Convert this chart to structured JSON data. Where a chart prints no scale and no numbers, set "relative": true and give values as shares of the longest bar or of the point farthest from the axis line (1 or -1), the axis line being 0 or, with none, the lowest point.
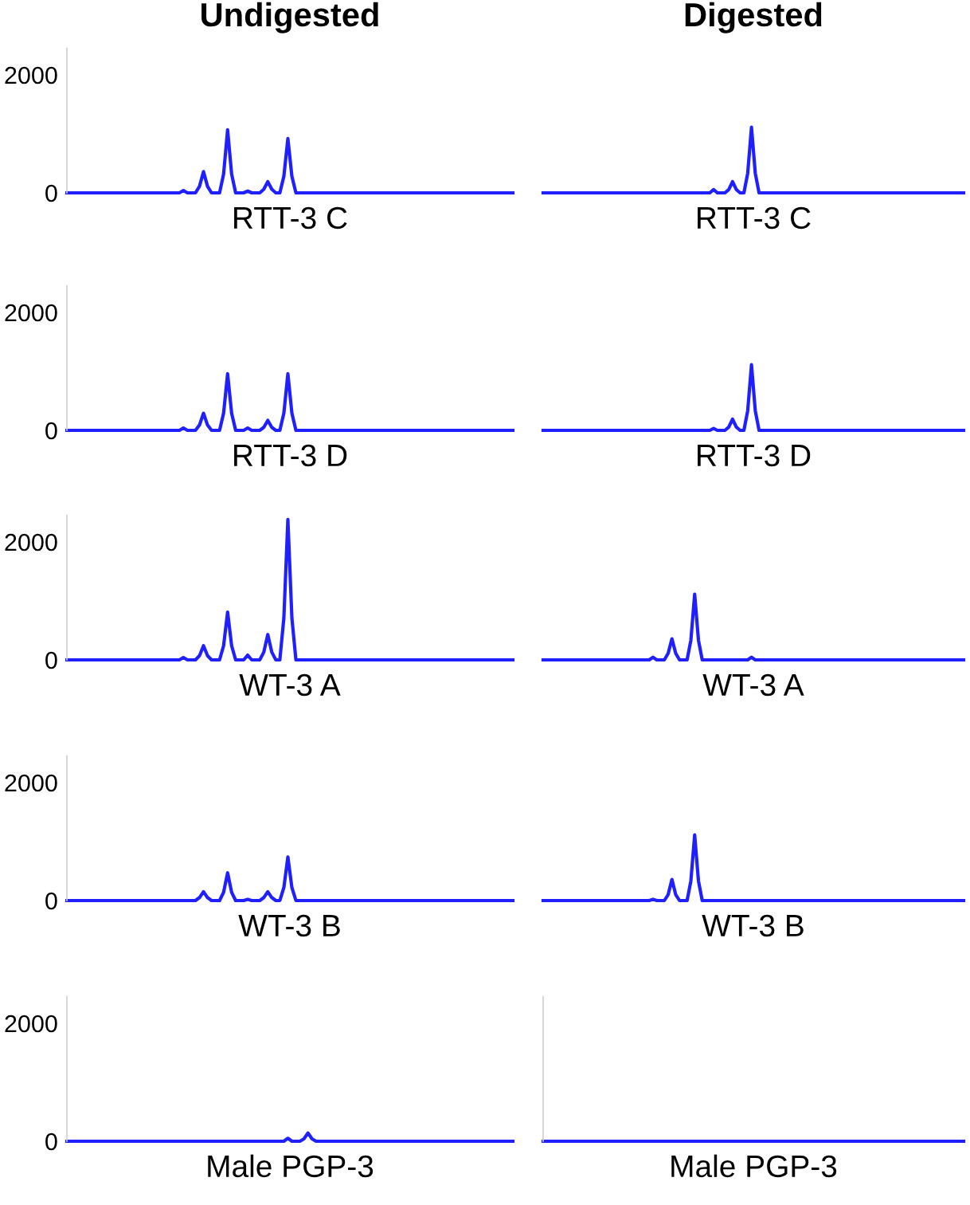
{
  "chart_data": [
    {
      "type": "line",
      "title": "Undigested",
      "xlabel": "RTT-3 C",
      "tick_labels": "y",
      "ylim": [
        0,
        2450
      ],
      "yticks": [
        0,
        2000
      ],
      "categories": [
        null,
        null,
        null,
        null,
        null,
        null,
        null,
        null,
        null,
        null,
        null,
        null,
        null,
        null,
        null,
        null,
        null,
        null,
        null,
        null,
        null,
        null,
        null,
        null,
        null,
        null,
        null,
        null,
        null,
        null,
        null,
        null,
        null,
        null,
        null,
        null,
        null,
        null,
        null,
        null,
        null,
        null,
        null,
        null,
        null,
        null,
        null,
        null,
        null,
        null,
        null,
        null,
        null,
        null,
        null,
        null,
        null,
        null,
        null,
        null,
        null,
        null,
        null,
        null,
        null,
        null,
        null,
        null,
        null,
        null,
        null,
        null,
        null,
        null,
        null,
        null,
        null,
        null,
        null,
        null,
        null,
        null,
        null,
        null,
        null,
        null,
        null,
        null,
        null,
        null,
        null,
        null,
        null,
        null,
        null,
        null,
        null,
        null,
        null,
        null,
        null,
        null,
        null,
        null,
        null,
        null,
        null,
        null,
        null,
        null,
        null,
        null
      ],
      "series": [
        {
          "color": "#2020ff",
          "values": [
            0,
            0,
            0,
            0,
            0,
            0,
            0,
            0,
            0,
            0,
            0,
            0,
            0,
            0,
            0,
            0,
            0,
            0,
            0,
            0,
            0,
            0,
            0,
            0,
            0,
            0,
            0,
            0,
            0,
            40,
            0,
            0,
            0,
            110,
            360,
            110,
            0,
            0,
            0,
            320,
            1070,
            320,
            0,
            0,
            0,
            30,
            0,
            0,
            0,
            60,
            190,
            60,
            0,
            0,
            280,
            920,
            280,
            0,
            0,
            0,
            0,
            0,
            0,
            0,
            0,
            0,
            0,
            0,
            0,
            0,
            0,
            0,
            0,
            0,
            0,
            0,
            0,
            0,
            0,
            0,
            0,
            0,
            0,
            0,
            0,
            0,
            0,
            0,
            0,
            0,
            0,
            0,
            0,
            0,
            0,
            0,
            0,
            0,
            0,
            0,
            0,
            0,
            0,
            0,
            0,
            0,
            0,
            0,
            0,
            0,
            0,
            0
          ]
        }
      ]
    },
    {
      "type": "line",
      "title": "Digested",
      "xlabel": "RTT-3 C",
      "tick_labels": false,
      "relative": true,
      "categories": [
        null,
        null,
        null,
        null,
        null,
        null,
        null,
        null,
        null,
        null,
        null,
        null,
        null,
        null,
        null,
        null,
        null,
        null,
        null,
        null,
        null,
        null,
        null,
        null,
        null,
        null,
        null,
        null,
        null,
        null,
        null,
        null,
        null,
        null,
        null,
        null,
        null,
        null,
        null,
        null,
        null,
        null,
        null,
        null,
        null,
        null,
        null,
        null,
        null,
        null,
        null,
        null,
        null,
        null,
        null,
        null,
        null,
        null,
        null,
        null,
        null,
        null,
        null,
        null,
        null,
        null,
        null,
        null,
        null,
        null,
        null,
        null,
        null,
        null,
        null,
        null,
        null,
        null,
        null,
        null,
        null,
        null,
        null,
        null,
        null,
        null,
        null,
        null,
        null,
        null,
        null,
        null,
        null,
        null,
        null,
        null,
        null,
        null,
        null,
        null,
        null,
        null,
        null,
        null,
        null,
        null,
        null,
        null,
        null,
        null,
        null,
        null
      ],
      "series": [
        {
          "color": "#2020ff",
          "values": [
            0,
            0,
            0,
            0,
            0,
            0,
            0,
            0,
            0,
            0,
            0,
            0,
            0,
            0,
            0,
            0,
            0,
            0,
            0,
            0,
            0,
            0,
            0,
            0,
            0,
            0,
            0,
            0,
            0,
            0,
            0,
            0,
            0,
            0,
            0,
            0,
            0,
            0,
            0,
            0,
            0,
            0,
            0,
            0,
            0,
            0.05,
            0,
            0,
            0,
            0.05,
            0.17,
            0.05,
            0,
            0,
            0.3,
            1,
            0.3,
            0,
            0,
            0,
            0,
            0,
            0,
            0,
            0,
            0,
            0,
            0,
            0,
            0,
            0,
            0,
            0,
            0,
            0,
            0,
            0,
            0,
            0,
            0,
            0,
            0,
            0,
            0,
            0,
            0,
            0,
            0,
            0,
            0,
            0,
            0,
            0,
            0,
            0,
            0,
            0,
            0,
            0,
            0,
            0,
            0,
            0,
            0,
            0,
            0,
            0,
            0,
            0,
            0,
            0,
            0
          ]
        }
      ]
    },
    {
      "type": "line",
      "xlabel": "RTT-3 D",
      "tick_labels": "y",
      "ylim": [
        0,
        2450
      ],
      "yticks": [
        0,
        2000
      ],
      "categories": [
        null,
        null,
        null,
        null,
        null,
        null,
        null,
        null,
        null,
        null,
        null,
        null,
        null,
        null,
        null,
        null,
        null,
        null,
        null,
        null,
        null,
        null,
        null,
        null,
        null,
        null,
        null,
        null,
        null,
        null,
        null,
        null,
        null,
        null,
        null,
        null,
        null,
        null,
        null,
        null,
        null,
        null,
        null,
        null,
        null,
        null,
        null,
        null,
        null,
        null,
        null,
        null,
        null,
        null,
        null,
        null,
        null,
        null,
        null,
        null,
        null,
        null,
        null,
        null,
        null,
        null,
        null,
        null,
        null,
        null,
        null,
        null,
        null,
        null,
        null,
        null,
        null,
        null,
        null,
        null,
        null,
        null,
        null,
        null,
        null,
        null,
        null,
        null,
        null,
        null,
        null,
        null,
        null,
        null,
        null,
        null,
        null,
        null,
        null,
        null,
        null,
        null,
        null,
        null,
        null,
        null,
        null,
        null,
        null,
        null,
        null,
        null
      ],
      "series": [
        {
          "color": "#2020ff",
          "values": [
            0,
            0,
            0,
            0,
            0,
            0,
            0,
            0,
            0,
            0,
            0,
            0,
            0,
            0,
            0,
            0,
            0,
            0,
            0,
            0,
            0,
            0,
            0,
            0,
            0,
            0,
            0,
            0,
            0,
            40,
            0,
            0,
            0,
            90,
            290,
            90,
            0,
            0,
            0,
            290,
            960,
            290,
            0,
            0,
            0,
            40,
            0,
            0,
            0,
            50,
            170,
            50,
            0,
            0,
            290,
            960,
            290,
            0,
            0,
            0,
            0,
            0,
            0,
            0,
            0,
            0,
            0,
            0,
            0,
            0,
            0,
            0,
            0,
            0,
            0,
            0,
            0,
            0,
            0,
            0,
            0,
            0,
            0,
            0,
            0,
            0,
            0,
            0,
            0,
            0,
            0,
            0,
            0,
            0,
            0,
            0,
            0,
            0,
            0,
            0,
            0,
            0,
            0,
            0,
            0,
            0,
            0,
            0,
            0,
            0,
            0,
            0
          ]
        }
      ]
    },
    {
      "type": "line",
      "xlabel": "RTT-3 D",
      "tick_labels": false,
      "relative": true,
      "categories": [
        null,
        null,
        null,
        null,
        null,
        null,
        null,
        null,
        null,
        null,
        null,
        null,
        null,
        null,
        null,
        null,
        null,
        null,
        null,
        null,
        null,
        null,
        null,
        null,
        null,
        null,
        null,
        null,
        null,
        null,
        null,
        null,
        null,
        null,
        null,
        null,
        null,
        null,
        null,
        null,
        null,
        null,
        null,
        null,
        null,
        null,
        null,
        null,
        null,
        null,
        null,
        null,
        null,
        null,
        null,
        null,
        null,
        null,
        null,
        null,
        null,
        null,
        null,
        null,
        null,
        null,
        null,
        null,
        null,
        null,
        null,
        null,
        null,
        null,
        null,
        null,
        null,
        null,
        null,
        null,
        null,
        null,
        null,
        null,
        null,
        null,
        null,
        null,
        null,
        null,
        null,
        null,
        null,
        null,
        null,
        null,
        null,
        null,
        null,
        null,
        null,
        null,
        null,
        null,
        null,
        null,
        null,
        null,
        null,
        null,
        null,
        null
      ],
      "series": [
        {
          "color": "#2020ff",
          "values": [
            0,
            0,
            0,
            0,
            0,
            0,
            0,
            0,
            0,
            0,
            0,
            0,
            0,
            0,
            0,
            0,
            0,
            0,
            0,
            0,
            0,
            0,
            0,
            0,
            0,
            0,
            0,
            0,
            0,
            0,
            0,
            0,
            0,
            0,
            0,
            0,
            0,
            0,
            0,
            0,
            0,
            0,
            0,
            0,
            0,
            0.03,
            0,
            0,
            0,
            0.05,
            0.17,
            0.05,
            0,
            0,
            0.3,
            1,
            0.3,
            0,
            0,
            0,
            0,
            0,
            0,
            0,
            0,
            0,
            0,
            0,
            0,
            0,
            0,
            0,
            0,
            0,
            0,
            0,
            0,
            0,
            0,
            0,
            0,
            0,
            0,
            0,
            0,
            0,
            0,
            0,
            0,
            0,
            0,
            0,
            0,
            0,
            0,
            0,
            0,
            0,
            0,
            0,
            0,
            0,
            0,
            0,
            0,
            0,
            0,
            0,
            0,
            0,
            0,
            0
          ]
        }
      ]
    },
    {
      "type": "line",
      "xlabel": "WT-3 A",
      "tick_labels": "y",
      "ylim": [
        0,
        2450
      ],
      "yticks": [
        0,
        2000
      ],
      "categories": [
        null,
        null,
        null,
        null,
        null,
        null,
        null,
        null,
        null,
        null,
        null,
        null,
        null,
        null,
        null,
        null,
        null,
        null,
        null,
        null,
        null,
        null,
        null,
        null,
        null,
        null,
        null,
        null,
        null,
        null,
        null,
        null,
        null,
        null,
        null,
        null,
        null,
        null,
        null,
        null,
        null,
        null,
        null,
        null,
        null,
        null,
        null,
        null,
        null,
        null,
        null,
        null,
        null,
        null,
        null,
        null,
        null,
        null,
        null,
        null,
        null,
        null,
        null,
        null,
        null,
        null,
        null,
        null,
        null,
        null,
        null,
        null,
        null,
        null,
        null,
        null,
        null,
        null,
        null,
        null,
        null,
        null,
        null,
        null,
        null,
        null,
        null,
        null,
        null,
        null,
        null,
        null,
        null,
        null,
        null,
        null,
        null,
        null,
        null,
        null,
        null,
        null,
        null,
        null,
        null,
        null,
        null,
        null,
        null,
        null,
        null,
        null
      ],
      "series": [
        {
          "color": "#2020ff",
          "values": [
            0,
            0,
            0,
            0,
            0,
            0,
            0,
            0,
            0,
            0,
            0,
            0,
            0,
            0,
            0,
            0,
            0,
            0,
            0,
            0,
            0,
            0,
            0,
            0,
            0,
            0,
            0,
            0,
            0,
            40,
            0,
            0,
            0,
            70,
            240,
            70,
            0,
            0,
            0,
            240,
            810,
            240,
            0,
            0,
            0,
            80,
            0,
            0,
            0,
            130,
            430,
            130,
            0,
            0,
            710,
            2380,
            710,
            0,
            0,
            0,
            0,
            0,
            0,
            0,
            0,
            0,
            0,
            0,
            0,
            0,
            0,
            0,
            0,
            0,
            0,
            0,
            0,
            0,
            0,
            0,
            0,
            0,
            0,
            0,
            0,
            0,
            0,
            0,
            0,
            0,
            0,
            0,
            0,
            0,
            0,
            0,
            0,
            0,
            0,
            0,
            0,
            0,
            0,
            0,
            0,
            0,
            0,
            0,
            0,
            0,
            0,
            0
          ]
        }
      ]
    },
    {
      "type": "line",
      "xlabel": "WT-3 A",
      "tick_labels": false,
      "relative": true,
      "categories": [
        null,
        null,
        null,
        null,
        null,
        null,
        null,
        null,
        null,
        null,
        null,
        null,
        null,
        null,
        null,
        null,
        null,
        null,
        null,
        null,
        null,
        null,
        null,
        null,
        null,
        null,
        null,
        null,
        null,
        null,
        null,
        null,
        null,
        null,
        null,
        null,
        null,
        null,
        null,
        null,
        null,
        null,
        null,
        null,
        null,
        null,
        null,
        null,
        null,
        null,
        null,
        null,
        null,
        null,
        null,
        null,
        null,
        null,
        null,
        null,
        null,
        null,
        null,
        null,
        null,
        null,
        null,
        null,
        null,
        null,
        null,
        null,
        null,
        null,
        null,
        null,
        null,
        null,
        null,
        null,
        null,
        null,
        null,
        null,
        null,
        null,
        null,
        null,
        null,
        null,
        null,
        null,
        null,
        null,
        null,
        null,
        null,
        null,
        null,
        null,
        null,
        null,
        null,
        null,
        null,
        null,
        null,
        null,
        null,
        null,
        null,
        null
      ],
      "series": [
        {
          "color": "#2020ff",
          "values": [
            0,
            0,
            0,
            0,
            0,
            0,
            0,
            0,
            0,
            0,
            0,
            0,
            0,
            0,
            0,
            0,
            0,
            0,
            0,
            0,
            0,
            0,
            0,
            0,
            0,
            0,
            0,
            0,
            0,
            0.04,
            0,
            0,
            0,
            0.1,
            0.32,
            0.1,
            0,
            0,
            0,
            0.3,
            1,
            0.3,
            0,
            0,
            0,
            0,
            0,
            0,
            0,
            0,
            0,
            0,
            0,
            0,
            0,
            0.04,
            0,
            0,
            0,
            0,
            0,
            0,
            0,
            0,
            0,
            0,
            0,
            0,
            0,
            0,
            0,
            0,
            0,
            0,
            0,
            0,
            0,
            0,
            0,
            0,
            0,
            0,
            0,
            0,
            0,
            0,
            0,
            0,
            0,
            0,
            0,
            0,
            0,
            0,
            0,
            0,
            0,
            0,
            0,
            0,
            0,
            0,
            0,
            0,
            0,
            0,
            0,
            0,
            0,
            0,
            0,
            0
          ]
        }
      ]
    },
    {
      "type": "line",
      "xlabel": "WT-3 B",
      "tick_labels": "y",
      "ylim": [
        0,
        2450
      ],
      "yticks": [
        0,
        2000
      ],
      "categories": [
        null,
        null,
        null,
        null,
        null,
        null,
        null,
        null,
        null,
        null,
        null,
        null,
        null,
        null,
        null,
        null,
        null,
        null,
        null,
        null,
        null,
        null,
        null,
        null,
        null,
        null,
        null,
        null,
        null,
        null,
        null,
        null,
        null,
        null,
        null,
        null,
        null,
        null,
        null,
        null,
        null,
        null,
        null,
        null,
        null,
        null,
        null,
        null,
        null,
        null,
        null,
        null,
        null,
        null,
        null,
        null,
        null,
        null,
        null,
        null,
        null,
        null,
        null,
        null,
        null,
        null,
        null,
        null,
        null,
        null,
        null,
        null,
        null,
        null,
        null,
        null,
        null,
        null,
        null,
        null,
        null,
        null,
        null,
        null,
        null,
        null,
        null,
        null,
        null,
        null,
        null,
        null,
        null,
        null,
        null,
        null,
        null,
        null,
        null,
        null,
        null,
        null,
        null,
        null,
        null,
        null,
        null,
        null,
        null,
        null,
        null,
        null
      ],
      "series": [
        {
          "color": "#2020ff",
          "values": [
            0,
            0,
            0,
            0,
            0,
            0,
            0,
            0,
            0,
            0,
            0,
            0,
            0,
            0,
            0,
            0,
            0,
            0,
            0,
            0,
            0,
            0,
            0,
            0,
            0,
            0,
            0,
            0,
            0,
            0,
            0,
            0,
            0,
            50,
            150,
            50,
            0,
            0,
            0,
            140,
            470,
            140,
            0,
            0,
            0,
            20,
            0,
            0,
            0,
            50,
            150,
            50,
            0,
            0,
            220,
            740,
            220,
            0,
            0,
            0,
            0,
            0,
            0,
            0,
            0,
            0,
            0,
            0,
            0,
            0,
            0,
            0,
            0,
            0,
            0,
            0,
            0,
            0,
            0,
            0,
            0,
            0,
            0,
            0,
            0,
            0,
            0,
            0,
            0,
            0,
            0,
            0,
            0,
            0,
            0,
            0,
            0,
            0,
            0,
            0,
            0,
            0,
            0,
            0,
            0,
            0,
            0,
            0,
            0,
            0,
            0,
            0
          ]
        }
      ]
    },
    {
      "type": "line",
      "xlabel": "WT-3 B",
      "tick_labels": false,
      "relative": true,
      "categories": [
        null,
        null,
        null,
        null,
        null,
        null,
        null,
        null,
        null,
        null,
        null,
        null,
        null,
        null,
        null,
        null,
        null,
        null,
        null,
        null,
        null,
        null,
        null,
        null,
        null,
        null,
        null,
        null,
        null,
        null,
        null,
        null,
        null,
        null,
        null,
        null,
        null,
        null,
        null,
        null,
        null,
        null,
        null,
        null,
        null,
        null,
        null,
        null,
        null,
        null,
        null,
        null,
        null,
        null,
        null,
        null,
        null,
        null,
        null,
        null,
        null,
        null,
        null,
        null,
        null,
        null,
        null,
        null,
        null,
        null,
        null,
        null,
        null,
        null,
        null,
        null,
        null,
        null,
        null,
        null,
        null,
        null,
        null,
        null,
        null,
        null,
        null,
        null,
        null,
        null,
        null,
        null,
        null,
        null,
        null,
        null,
        null,
        null,
        null,
        null,
        null,
        null,
        null,
        null,
        null,
        null,
        null,
        null,
        null,
        null,
        null,
        null
      ],
      "series": [
        {
          "color": "#2020ff",
          "values": [
            0,
            0,
            0,
            0,
            0,
            0,
            0,
            0,
            0,
            0,
            0,
            0,
            0,
            0,
            0,
            0,
            0,
            0,
            0,
            0,
            0,
            0,
            0,
            0,
            0,
            0,
            0,
            0,
            0,
            0.02,
            0,
            0,
            0,
            0.09,
            0.32,
            0.09,
            0,
            0,
            0,
            0.3,
            1,
            0.3,
            0,
            0,
            0,
            0,
            0,
            0,
            0,
            0,
            0,
            0,
            0,
            0,
            0,
            0,
            0,
            0,
            0,
            0,
            0,
            0,
            0,
            0,
            0,
            0,
            0,
            0,
            0,
            0,
            0,
            0,
            0,
            0,
            0,
            0,
            0,
            0,
            0,
            0,
            0,
            0,
            0,
            0,
            0,
            0,
            0,
            0,
            0,
            0,
            0,
            0,
            0,
            0,
            0,
            0,
            0,
            0,
            0,
            0,
            0,
            0,
            0,
            0,
            0,
            0,
            0,
            0,
            0,
            0,
            0,
            0
          ]
        }
      ]
    },
    {
      "type": "line",
      "xlabel": "Male PGP-3",
      "tick_labels": "y",
      "ylim": [
        0,
        2450
      ],
      "yticks": [
        0,
        2000
      ],
      "categories": [
        null,
        null,
        null,
        null,
        null,
        null,
        null,
        null,
        null,
        null,
        null,
        null,
        null,
        null,
        null,
        null,
        null,
        null,
        null,
        null,
        null,
        null,
        null,
        null,
        null,
        null,
        null,
        null,
        null,
        null,
        null,
        null,
        null,
        null,
        null,
        null,
        null,
        null,
        null,
        null,
        null,
        null,
        null,
        null,
        null,
        null,
        null,
        null,
        null,
        null,
        null,
        null,
        null,
        null,
        null,
        null,
        null,
        null,
        null,
        null,
        null,
        null,
        null,
        null,
        null,
        null,
        null,
        null,
        null,
        null,
        null,
        null,
        null,
        null,
        null,
        null,
        null,
        null,
        null,
        null,
        null,
        null,
        null,
        null,
        null,
        null,
        null,
        null,
        null,
        null,
        null,
        null,
        null,
        null,
        null,
        null,
        null,
        null,
        null,
        null,
        null,
        null,
        null,
        null,
        null,
        null,
        null,
        null,
        null,
        null,
        null,
        null
      ],
      "series": [
        {
          "color": "#2020ff",
          "values": [
            0,
            0,
            0,
            0,
            0,
            0,
            0,
            0,
            0,
            0,
            0,
            0,
            0,
            0,
            0,
            0,
            0,
            0,
            0,
            0,
            0,
            0,
            0,
            0,
            0,
            0,
            0,
            0,
            0,
            0,
            0,
            0,
            0,
            0,
            0,
            0,
            0,
            0,
            0,
            0,
            0,
            0,
            0,
            0,
            0,
            0,
            0,
            0,
            0,
            0,
            0,
            0,
            0,
            0,
            0,
            50,
            0,
            0,
            0,
            40,
            140,
            40,
            0,
            0,
            0,
            0,
            0,
            0,
            0,
            0,
            0,
            0,
            0,
            0,
            0,
            0,
            0,
            0,
            0,
            0,
            0,
            0,
            0,
            0,
            0,
            0,
            0,
            0,
            0,
            0,
            0,
            0,
            0,
            0,
            0,
            0,
            0,
            0,
            0,
            0,
            0,
            0,
            0,
            0,
            0,
            0,
            0,
            0,
            0,
            0,
            0,
            0
          ]
        }
      ]
    },
    {
      "type": "line",
      "xlabel": "Male PGP-3",
      "tick_labels": false,
      "ylim": [
        0,
        2450
      ],
      "categories": [
        null,
        null,
        null,
        null,
        null,
        null,
        null,
        null,
        null,
        null,
        null,
        null,
        null,
        null,
        null,
        null,
        null,
        null,
        null,
        null,
        null,
        null,
        null,
        null,
        null,
        null,
        null,
        null,
        null,
        null,
        null,
        null,
        null,
        null,
        null,
        null,
        null,
        null,
        null,
        null,
        null,
        null,
        null,
        null,
        null,
        null,
        null,
        null,
        null,
        null,
        null,
        null,
        null,
        null,
        null,
        null,
        null,
        null,
        null,
        null,
        null,
        null,
        null,
        null,
        null,
        null,
        null,
        null,
        null,
        null,
        null,
        null,
        null,
        null,
        null,
        null,
        null,
        null,
        null,
        null,
        null,
        null,
        null,
        null,
        null,
        null,
        null,
        null,
        null,
        null,
        null,
        null,
        null,
        null,
        null,
        null,
        null,
        null,
        null,
        null,
        null,
        null,
        null,
        null,
        null,
        null,
        null,
        null,
        null,
        null,
        null,
        null
      ],
      "series": [
        {
          "color": "#2020ff",
          "values": [
            0,
            0,
            0,
            0,
            0,
            0,
            0,
            0,
            0,
            0,
            0,
            0,
            0,
            0,
            0,
            0,
            0,
            0,
            0,
            0,
            0,
            0,
            0,
            0,
            0,
            0,
            0,
            0,
            0,
            0,
            0,
            0,
            0,
            0,
            0,
            0,
            0,
            0,
            0,
            0,
            0,
            0,
            0,
            0,
            0,
            0,
            0,
            0,
            0,
            0,
            0,
            0,
            0,
            0,
            0,
            0,
            0,
            0,
            0,
            0,
            0,
            0,
            0,
            0,
            0,
            0,
            0,
            0,
            0,
            0,
            0,
            0,
            0,
            0,
            0,
            0,
            0,
            0,
            0,
            0,
            0,
            0,
            0,
            0,
            0,
            0,
            0,
            0,
            0,
            0,
            0,
            0,
            0,
            0,
            0,
            0,
            0,
            0,
            0,
            0,
            0,
            0,
            0,
            0,
            0,
            0,
            0,
            0,
            0,
            0,
            0,
            0
          ]
        }
      ]
    }
  ]
}
